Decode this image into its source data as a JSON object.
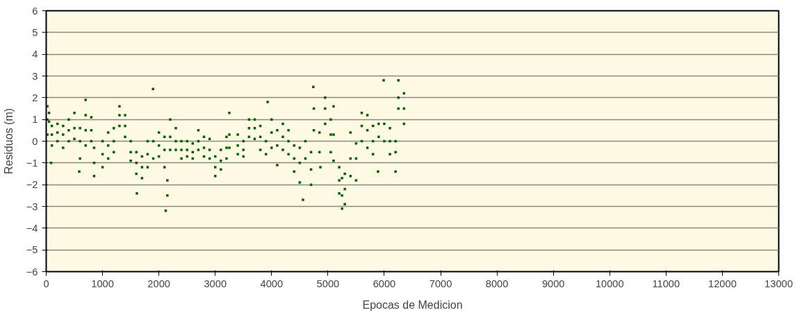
{
  "chart_data": {
    "type": "scatter",
    "xlabel": "Epocas de Medicion",
    "ylabel": "Residuos (m)",
    "xlim": [
      0,
      13000
    ],
    "ylim": [
      -6,
      6
    ],
    "xticks": [
      0,
      1000,
      2000,
      3000,
      4000,
      5000,
      6000,
      7000,
      8000,
      9000,
      10000,
      11000,
      12000,
      13000
    ],
    "yticks": [
      -6,
      -5,
      -4,
      -3,
      -2,
      -1,
      0,
      1,
      2,
      3,
      4,
      5,
      6
    ],
    "grid": "y",
    "marker": "square",
    "series": [
      {
        "color": "#006400",
        "x": [
          20,
          20,
          20,
          50,
          50,
          87,
          100,
          100,
          100,
          200,
          200,
          200,
          300,
          300,
          300,
          400,
          400,
          400,
          500,
          500,
          500,
          586,
          600,
          600,
          600,
          699,
          700,
          700,
          700,
          800,
          800,
          800,
          850,
          850,
          850,
          1000,
          1000,
          1000,
          1100,
          1100,
          1100,
          1200,
          1200,
          1200,
          1300,
          1300,
          1300,
          1400,
          1400,
          1400,
          1500,
          1500,
          1500,
          1600,
          1600,
          1600,
          1609,
          1700,
          1700,
          1700,
          1800,
          1800,
          1800,
          1896,
          1900,
          1900,
          2000,
          2000,
          2000,
          2100,
          2100,
          2100,
          2121,
          2150,
          2150,
          2200,
          2200,
          2200,
          2300,
          2300,
          2300,
          2400,
          2400,
          2400,
          2500,
          2500,
          2500,
          2600,
          2600,
          2600,
          2700,
          2700,
          2700,
          2800,
          2800,
          2800,
          2900,
          2900,
          2900,
          3000,
          3000,
          3000,
          3100,
          3100,
          3100,
          3200,
          3200,
          3200,
          3250,
          3250,
          3250,
          3400,
          3400,
          3400,
          3500,
          3500,
          3500,
          3600,
          3600,
          3600,
          3700,
          3700,
          3700,
          3800,
          3800,
          3800,
          3900,
          3930,
          3900,
          4000,
          4000,
          4000,
          4100,
          4100,
          4100,
          4200,
          4200,
          4200,
          4300,
          4300,
          4300,
          4400,
          4400,
          4400,
          4500,
          4500,
          4500,
          4557,
          4600,
          4600,
          4700,
          4700,
          4700,
          4740,
          4750,
          4750,
          4850,
          4850,
          4866,
          4950,
          4950,
          4950,
          5050,
          5050,
          5050,
          5100,
          5100,
          5100,
          5200,
          5200,
          5200,
          5250,
          5250,
          5250,
          5300,
          5300,
          5300,
          5400,
          5400,
          5400,
          5500,
          5500,
          5500,
          5600,
          5600,
          5600,
          5700,
          5700,
          5700,
          5800,
          5800,
          5800,
          5889,
          5900,
          5900,
          5989,
          6000,
          6000,
          6100,
          6100,
          6100,
          6200,
          6200,
          6200,
          6250,
          6250,
          6250,
          6350,
          6350,
          6350
        ],
        "values": [
          1.0,
          1.6,
          0.3,
          0.9,
          1.3,
          -1.0,
          0.3,
          0.7,
          -0.2,
          0.4,
          0.8,
          0.0,
          0.3,
          0.7,
          -0.3,
          0.5,
          1.0,
          0.0,
          0.6,
          1.3,
          0.1,
          -1.4,
          0.0,
          0.6,
          -0.8,
          1.9,
          0.5,
          1.2,
          -0.2,
          0.5,
          1.1,
          0.0,
          -1.0,
          -0.3,
          -1.6,
          -0.6,
          0.0,
          -1.2,
          -0.2,
          0.4,
          -0.8,
          0.0,
          0.6,
          -0.5,
          1.2,
          1.6,
          0.7,
          0.7,
          1.2,
          0.2,
          -0.5,
          0.0,
          -0.9,
          -1.0,
          -0.5,
          -1.5,
          -2.4,
          -1.2,
          -0.7,
          -1.7,
          -0.6,
          0.0,
          -1.2,
          2.4,
          0.0,
          -0.8,
          -0.2,
          0.4,
          -0.7,
          -0.4,
          0.2,
          -1.2,
          -3.2,
          -2.5,
          -1.8,
          0.2,
          1.0,
          -0.4,
          0.0,
          0.6,
          -0.4,
          -0.4,
          0.0,
          -0.8,
          -0.4,
          0.0,
          -0.7,
          -0.5,
          -0.1,
          -0.8,
          0.0,
          0.5,
          -0.4,
          -0.3,
          0.2,
          -0.7,
          -0.4,
          0.1,
          -0.8,
          -1.2,
          -0.7,
          -1.6,
          -0.9,
          -0.4,
          -1.3,
          -0.3,
          0.2,
          -0.8,
          0.3,
          1.3,
          -0.3,
          -0.2,
          0.3,
          -0.6,
          -0.4,
          0.0,
          -0.7,
          0.6,
          1.0,
          0.2,
          0.6,
          1.0,
          0.1,
          0.2,
          0.7,
          -0.4,
          0.0,
          1.8,
          -0.6,
          0.4,
          1.0,
          -0.3,
          -0.2,
          0.5,
          -1.1,
          0.2,
          0.8,
          -0.4,
          0.0,
          0.5,
          -0.6,
          -0.8,
          -0.2,
          -1.4,
          -1.0,
          -0.3,
          -1.9,
          -2.7,
          -0.8,
          0.0,
          -1.3,
          -0.5,
          -2.0,
          2.5,
          1.5,
          0.5,
          -0.5,
          0.4,
          -1.2,
          1.5,
          2.0,
          0.8,
          0.3,
          1.0,
          -0.5,
          0.3,
          1.6,
          -0.9,
          -1.8,
          -1.2,
          -2.4,
          -2.5,
          -1.7,
          -3.1,
          -2.2,
          -1.5,
          -2.9,
          -0.8,
          0.4,
          -1.6,
          -0.8,
          -0.1,
          -1.8,
          0.7,
          1.3,
          0.0,
          0.5,
          1.2,
          -0.3,
          0.0,
          0.7,
          -0.6,
          -1.4,
          0.2,
          0.8,
          2.8,
          0.8,
          0.0,
          0.0,
          0.6,
          -0.6,
          -0.5,
          0.0,
          -1.4,
          2.0,
          2.8,
          1.5,
          1.5,
          2.2,
          0.8
        ]
      }
    ]
  }
}
